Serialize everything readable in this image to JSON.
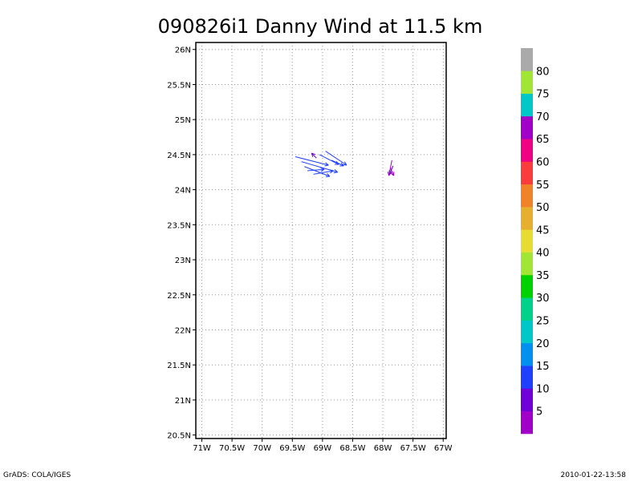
{
  "chart_data": {
    "type": "vector-field",
    "title": "090826i1 Danny Wind at 11.5 km",
    "xlim": [
      -71.1,
      -66.95
    ],
    "ylim": [
      20.45,
      26.1
    ],
    "x_ticks": [
      -71,
      -70.5,
      -70,
      -69.5,
      -69,
      -68.5,
      -68,
      -67.5,
      -67
    ],
    "x_tick_labels": [
      "71W",
      "70.5W",
      "70W",
      "69.5W",
      "69W",
      "68.5W",
      "68W",
      "67.5W",
      "67W"
    ],
    "y_ticks": [
      20.5,
      21,
      21.5,
      22,
      22.5,
      23,
      23.5,
      24,
      24.5,
      25,
      25.5,
      26
    ],
    "y_tick_labels": [
      "20.5N",
      "21N",
      "21.5N",
      "22N",
      "22.5N",
      "23N",
      "23.5N",
      "24N",
      "24.5N",
      "25N",
      "25.5N",
      "26N"
    ],
    "grid": true,
    "colorbar": {
      "labels": [
        "5",
        "10",
        "15",
        "20",
        "25",
        "30",
        "35",
        "40",
        "45",
        "50",
        "55",
        "60",
        "65",
        "70",
        "75",
        "80"
      ],
      "colors": [
        "#a000c8",
        "#7000d8",
        "#2040ff",
        "#0090f0",
        "#00c8c8",
        "#00d28c",
        "#00d200",
        "#a0e632",
        "#e6dc32",
        "#e6af2d",
        "#f08228",
        "#fa3c3c",
        "#f00082",
        "#a000c8",
        "#00c8c8",
        "#a0e632",
        "#aaaaaa"
      ]
    },
    "vectors": [
      {
        "x": -69.45,
        "y": 24.47,
        "u": 0.55,
        "v": -0.12,
        "color": "#2040ff"
      },
      {
        "x": -69.35,
        "y": 24.4,
        "u": 0.6,
        "v": -0.15,
        "color": "#2040ff"
      },
      {
        "x": -69.3,
        "y": 24.33,
        "u": 0.42,
        "v": -0.14,
        "color": "#2040ff"
      },
      {
        "x": -69.25,
        "y": 24.27,
        "u": 0.28,
        "v": 0.02,
        "color": "#2040ff"
      },
      {
        "x": -69.15,
        "y": 24.22,
        "u": 0.33,
        "v": 0.05,
        "color": "#2040ff"
      },
      {
        "x": -69.05,
        "y": 24.5,
        "u": 0.32,
        "v": -0.14,
        "color": "#2040ff"
      },
      {
        "x": -68.95,
        "y": 24.55,
        "u": 0.35,
        "v": -0.2,
        "color": "#2040ff"
      },
      {
        "x": -68.85,
        "y": 24.42,
        "u": 0.2,
        "v": -0.08,
        "color": "#2040ff"
      },
      {
        "x": -69.1,
        "y": 24.45,
        "u": -0.08,
        "v": 0.07,
        "color": "#7000d8"
      },
      {
        "x": -67.85,
        "y": 24.42,
        "u": -0.05,
        "v": -0.22,
        "color": "#a000c8"
      },
      {
        "x": -67.83,
        "y": 24.34,
        "u": -0.06,
        "v": -0.12,
        "color": "#7000d8"
      },
      {
        "x": -67.87,
        "y": 24.3,
        "u": 0.05,
        "v": -0.1,
        "color": "#a000c8"
      }
    ]
  },
  "footer": {
    "left": "GrADS: COLA/IGES",
    "right": "2010-01-22-13:58"
  }
}
